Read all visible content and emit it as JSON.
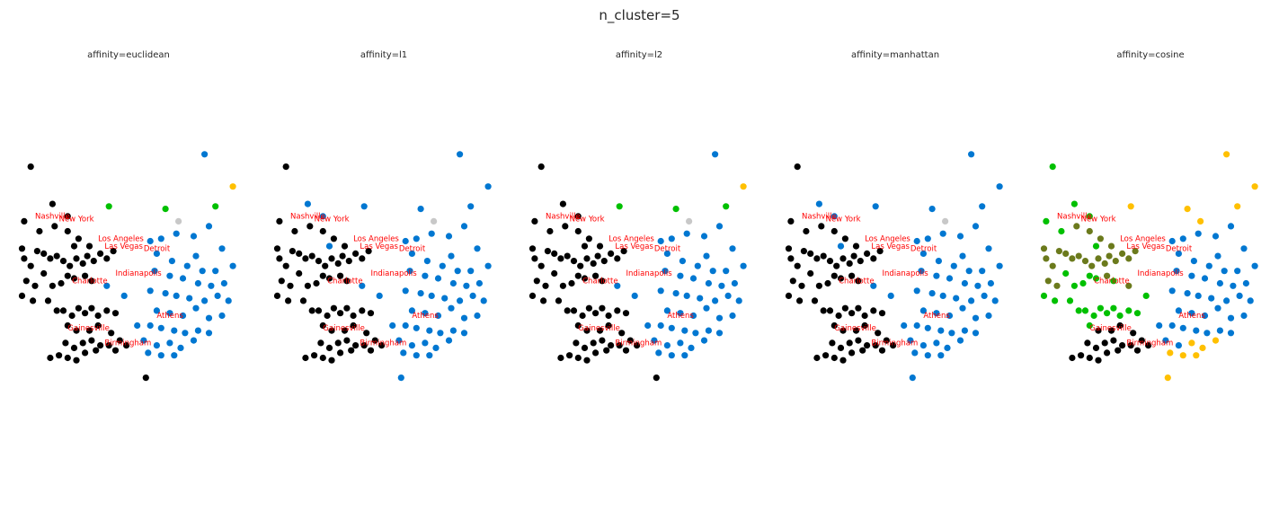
{
  "title": "n_cluster=5",
  "chart_data": {
    "type": "scatter",
    "panels": [
      {
        "title": "affinity=euclidean"
      },
      {
        "title": "affinity=l1"
      },
      {
        "title": "affinity=l2"
      },
      {
        "title": "affinity=manhattan"
      },
      {
        "title": "affinity=cosine"
      }
    ],
    "colors": {
      "black": "#000000",
      "blue": "#0077d1",
      "green": "#00c000",
      "yellow": "#ffc000",
      "gray": "#c8c8c8",
      "olive": "#6b7a1c",
      "label": "#ff0000"
    },
    "points": [
      [
        0.5,
        17.0
      ],
      [
        0.2,
        14.8
      ],
      [
        0.9,
        14.4
      ],
      [
        1.6,
        14.6
      ],
      [
        2.2,
        14.4
      ],
      [
        2.7,
        14.1
      ],
      [
        0.1,
        13.7
      ],
      [
        0.2,
        13.3
      ],
      [
        0.5,
        13.0
      ],
      [
        0.8,
        13.6
      ],
      [
        1.1,
        13.5
      ],
      [
        1.4,
        13.3
      ],
      [
        1.7,
        13.4
      ],
      [
        2.0,
        13.2
      ],
      [
        2.3,
        13.0
      ],
      [
        2.6,
        13.3
      ],
      [
        2.9,
        13.1
      ],
      [
        3.1,
        13.4
      ],
      [
        3.4,
        13.2
      ],
      [
        3.7,
        13.5
      ],
      [
        4.0,
        13.3
      ],
      [
        4.3,
        13.6
      ],
      [
        3.2,
        13.8
      ],
      [
        3.0,
        12.6
      ],
      [
        0.3,
        12.4
      ],
      [
        0.7,
        12.2
      ],
      [
        1.1,
        12.7
      ],
      [
        1.5,
        12.2
      ],
      [
        1.9,
        12.3
      ],
      [
        2.2,
        12.6
      ],
      [
        2.5,
        12.5
      ],
      [
        3.3,
        12.4
      ],
      [
        0.1,
        11.8
      ],
      [
        0.6,
        11.6
      ],
      [
        1.3,
        11.6
      ],
      [
        1.7,
        11.2
      ],
      [
        2.0,
        11.2
      ],
      [
        2.4,
        11.0
      ],
      [
        2.7,
        11.3
      ],
      [
        3.0,
        11.1
      ],
      [
        3.3,
        11.3
      ],
      [
        3.6,
        11.0
      ],
      [
        4.0,
        11.2
      ],
      [
        4.4,
        11.1
      ],
      [
        2.2,
        10.6
      ],
      [
        2.6,
        10.4
      ],
      [
        3.2,
        10.4
      ],
      [
        3.6,
        10.6
      ],
      [
        4.2,
        10.3
      ],
      [
        2.1,
        9.9
      ],
      [
        2.5,
        9.7
      ],
      [
        2.9,
        9.9
      ],
      [
        3.3,
        10.0
      ],
      [
        3.7,
        9.8
      ],
      [
        4.1,
        9.8
      ],
      [
        4.6,
        10.0
      ],
      [
        4.9,
        9.8
      ],
      [
        1.4,
        9.3
      ],
      [
        1.8,
        9.4
      ],
      [
        2.2,
        9.3
      ],
      [
        2.6,
        9.2
      ],
      [
        3.0,
        9.5
      ],
      [
        3.5,
        9.6
      ],
      [
        4.4,
        9.6
      ],
      [
        5.8,
        8.5
      ],
      [
        1.5,
        15.5
      ],
      [
        2.2,
        15.0
      ],
      [
        2.5,
        13.8
      ],
      [
        4.8,
        11.8
      ],
      [
        4.0,
        12.2
      ],
      [
        6.0,
        14.0
      ],
      [
        6.5,
        14.1
      ],
      [
        7.2,
        14.3
      ],
      [
        8.0,
        14.2
      ],
      [
        8.7,
        14.6
      ],
      [
        9.3,
        13.7
      ],
      [
        8.1,
        13.4
      ],
      [
        6.3,
        13.5
      ],
      [
        7.0,
        13.2
      ],
      [
        7.7,
        13.0
      ],
      [
        8.4,
        12.8
      ],
      [
        9.0,
        12.8
      ],
      [
        9.8,
        13.0
      ],
      [
        6.2,
        12.8
      ],
      [
        6.9,
        12.6
      ],
      [
        7.5,
        12.5
      ],
      [
        8.2,
        12.3
      ],
      [
        8.8,
        12.2
      ],
      [
        9.4,
        12.3
      ],
      [
        6.0,
        12.0
      ],
      [
        6.7,
        11.9
      ],
      [
        7.2,
        11.8
      ],
      [
        7.8,
        11.7
      ],
      [
        8.5,
        11.6
      ],
      [
        9.1,
        11.8
      ],
      [
        9.6,
        11.6
      ],
      [
        6.3,
        11.2
      ],
      [
        6.9,
        11.1
      ],
      [
        7.5,
        11.0
      ],
      [
        8.1,
        11.3
      ],
      [
        8.7,
        10.9
      ],
      [
        9.3,
        11.0
      ],
      [
        5.4,
        10.6
      ],
      [
        6.0,
        10.6
      ],
      [
        6.5,
        10.5
      ],
      [
        7.1,
        10.4
      ],
      [
        7.6,
        10.3
      ],
      [
        8.2,
        10.4
      ],
      [
        8.7,
        10.3
      ],
      [
        5.7,
        10.0
      ],
      [
        6.3,
        9.8
      ],
      [
        6.9,
        9.9
      ],
      [
        7.4,
        9.7
      ],
      [
        8.0,
        10.0
      ],
      [
        5.9,
        9.5
      ],
      [
        6.5,
        9.4
      ],
      [
        7.1,
        9.4
      ],
      [
        8.5,
        17.5
      ],
      [
        9.8,
        16.2
      ],
      [
        9.0,
        15.4
      ],
      [
        4.1,
        15.4
      ],
      [
        6.7,
        15.3
      ],
      [
        7.3,
        14.8
      ]
    ],
    "clusters": [
      {
        "affinity": "euclidean",
        "assignment": "bbbbbbbbbbbbbbbbbbbbbbbbbbbbbbbbbbbbbbbbbbbbbbbbbbbbbbbbbbbbbbbbbbbbuuuuuuuuuuuuuuuuuuuuuuuuuuuuuuuuuuuuuuuuuuuuuuuuuuyggggu"
      },
      {
        "affinity": "l1",
        "assignment": "bbbbbbbbbbbbbbbbbbbbbbbbbbbbbbbbbbbbbbbbbbbbbbbbbbbbbbbbbbbbbbbbuuuuuuuuuuuuuuuuuuuuuuuuuuuuuuuuuuuuuuuuuuuuuuuuuuuuuuuuuuuuyggggu"
      },
      {
        "affinity": "l2",
        "assignment": "bbbbbbbbbbbbbbbbbbbbbbbbbbbbbbbbbbbbbbbbbbbbbbbbbbbbbbbbbbbbbbbbbbbbuuuuuuuuuuuuuuuuuuuuuuuuuuuuuuuuuuuuuuuuuuuuuuuuuuyggggu"
      },
      {
        "affinity": "manhattan",
        "assignment": "bbbbbbbbbbbbbbbbbbbbbbbbbbbbbbbbbbbbbbbbbbbbbbbbbbbbbbbbbbbbbbbbuuuuuuuuuuuuuuuuuuuuuuuuuuuuuuuuuuuuuuuuuuuuuuuuuuuuuuuuuuuuyggggu"
      },
      {
        "affinity": "cosine",
        "assignment": "gggooooooooooooooooooooooogggggggggggggggggggbbbbbbbbbbbbbbbbbbbyggggouuuuuuuuuuuuuuuuuuuuuuuuuuuuuuuuuuuuuuuuuyyyyyyyyyyyyyyyyyyyyyyyyy"
      }
    ],
    "labels": [
      {
        "text": "Nashville",
        "x": 0.7,
        "y": 14.9
      },
      {
        "text": "New York",
        "x": 1.8,
        "y": 14.8
      },
      {
        "text": "Los Angeles",
        "x": 3.6,
        "y": 14.0
      },
      {
        "text": "Las Vegas",
        "x": 3.9,
        "y": 13.7
      },
      {
        "text": "Detroit",
        "x": 5.7,
        "y": 13.6
      },
      {
        "text": "Indianapolis",
        "x": 4.4,
        "y": 12.6
      },
      {
        "text": "Charlotte",
        "x": 2.4,
        "y": 12.3
      },
      {
        "text": "Athens",
        "x": 6.3,
        "y": 10.9
      },
      {
        "text": "Birmingham",
        "x": 3.9,
        "y": 9.8
      },
      {
        "text": "Gainesville",
        "x": 2.2,
        "y": 10.4
      }
    ],
    "xlim": [
      -0.5,
      10.5
    ],
    "ylim": [
      4.0,
      21.0
    ],
    "grid": false,
    "legend": "none"
  }
}
